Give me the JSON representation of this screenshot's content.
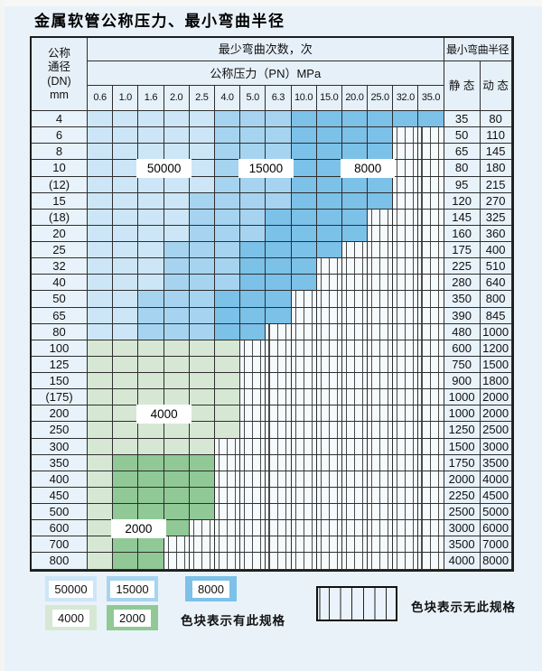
{
  "title": "金属软管公称压力、最小弯曲半径",
  "colors": {
    "blue_light": "#cde6f7",
    "blue_mid": "#a6d4f0",
    "blue_dark": "#7cc1e8",
    "green_light": "#d6e8d4",
    "green_mid": "#90c996"
  },
  "table": {
    "header": {
      "dn_lines": [
        "公称",
        "通径",
        "(DN)",
        "mm"
      ],
      "bend_cycles": "最少弯曲次数，次",
      "bend_radius": "最小弯曲半径",
      "pressure": "公称压力（PN）MPa",
      "static": "静 态",
      "dynamic": "动 态",
      "pressure_cols": [
        "0.6",
        "1.0",
        "1.6",
        "2.0",
        "2.5",
        "4.0",
        "5.0",
        "6.3",
        "10.0",
        "15.0",
        "20.0",
        "25.0",
        "32.0",
        "35.0"
      ]
    },
    "band_legend_key": {
      "L": "50000",
      "M": "15000",
      "D": "8000",
      "G": "4000",
      "E": "2000",
      "X": "无此规格"
    },
    "rows": [
      {
        "dn": "4",
        "bands": "LLLLLMMMDDDDDD",
        "static": "35",
        "dynamic": "80"
      },
      {
        "dn": "6",
        "bands": "LLLLLMMMDDDDXX",
        "static": "50",
        "dynamic": "110"
      },
      {
        "dn": "8",
        "bands": "LLLLLMMMDDDDXX",
        "static": "65",
        "dynamic": "145"
      },
      {
        "dn": "10",
        "bands": "LLLLLMMMDDDDXX",
        "static": "80",
        "dynamic": "180"
      },
      {
        "dn": "(12)",
        "bands": "LLLLLMMMDDDDXX",
        "static": "95",
        "dynamic": "215"
      },
      {
        "dn": "15",
        "bands": "LLLLMMMMDDDDXX",
        "static": "120",
        "dynamic": "270"
      },
      {
        "dn": "(18)",
        "bands": "LLLLMMMDDDDXXX",
        "static": "145",
        "dynamic": "325"
      },
      {
        "dn": "20",
        "bands": "LLLLMMMDDDDXXX",
        "static": "160",
        "dynamic": "360"
      },
      {
        "dn": "25",
        "bands": "LLLMMMDDDDXXXX",
        "static": "175",
        "dynamic": "400"
      },
      {
        "dn": "32",
        "bands": "LLLMMMDDDXXXXX",
        "static": "225",
        "dynamic": "510"
      },
      {
        "dn": "40",
        "bands": "LLLMMMDDDXXXXX",
        "static": "280",
        "dynamic": "640"
      },
      {
        "dn": "50",
        "bands": "LLMMMDDDXXXXXX",
        "static": "350",
        "dynamic": "800"
      },
      {
        "dn": "65",
        "bands": "LLMMMDDDXXXXXX",
        "static": "390",
        "dynamic": "845"
      },
      {
        "dn": "80",
        "bands": "LLMMMDDXXXXXXX",
        "static": "480",
        "dynamic": "1000"
      },
      {
        "dn": "100",
        "bands": "GGGGGGXXXXXXXX",
        "static": "600",
        "dynamic": "1200"
      },
      {
        "dn": "125",
        "bands": "GGGGGGXXXXXXXX",
        "static": "750",
        "dynamic": "1500"
      },
      {
        "dn": "150",
        "bands": "GGGGGGXXXXXXXX",
        "static": "900",
        "dynamic": "1800"
      },
      {
        "dn": "(175)",
        "bands": "GGGGGGXXXXXXXX",
        "static": "1000",
        "dynamic": "2000"
      },
      {
        "dn": "200",
        "bands": "GGGGGGXXXXXXXX",
        "static": "1000",
        "dynamic": "2000"
      },
      {
        "dn": "250",
        "bands": "GGGGGGXXXXXXXX",
        "static": "1250",
        "dynamic": "2500"
      },
      {
        "dn": "300",
        "bands": "GGGGGXXXXXXXXX",
        "static": "1500",
        "dynamic": "3000"
      },
      {
        "dn": "350",
        "bands": "GEEEEXXXXXXXXX",
        "static": "1750",
        "dynamic": "3500"
      },
      {
        "dn": "400",
        "bands": "GEEEEXXXXXXXXX",
        "static": "2000",
        "dynamic": "4000"
      },
      {
        "dn": "450",
        "bands": "GEEEEXXXXXXXXX",
        "static": "2250",
        "dynamic": "4500"
      },
      {
        "dn": "500",
        "bands": "GEEEEXXXXXXXXX",
        "static": "2500",
        "dynamic": "5000"
      },
      {
        "dn": "600",
        "bands": "GEEEXXXXXXXXXX",
        "static": "3000",
        "dynamic": "6000"
      },
      {
        "dn": "700",
        "bands": "GEEXXXXXXXXXXX",
        "static": "3500",
        "dynamic": "7000"
      },
      {
        "dn": "800",
        "bands": "GEEXXXXXXXXXXX",
        "static": "4000",
        "dynamic": "8000"
      }
    ],
    "overlay_labels": [
      {
        "text": "50000",
        "dn": "10",
        "cols": [
          3,
          4
        ]
      },
      {
        "text": "15000",
        "dn": "10",
        "cols": [
          7,
          8
        ]
      },
      {
        "text": "8000",
        "dn": "10",
        "cols": [
          11,
          12
        ]
      },
      {
        "text": "4000",
        "dn": "200",
        "cols": [
          3,
          4
        ]
      },
      {
        "text": "2000",
        "dn": "600",
        "cols": [
          2,
          3
        ]
      }
    ]
  },
  "legend": {
    "swatches": [
      {
        "label": "50000",
        "band": "L"
      },
      {
        "label": "15000",
        "band": "M"
      },
      {
        "label": "8000",
        "band": "D"
      },
      {
        "label": "4000",
        "band": "G"
      },
      {
        "label": "2000",
        "band": "E"
      }
    ],
    "available_note": "色块表示有此规格",
    "unavailable_note": "色块表示无此规格"
  }
}
